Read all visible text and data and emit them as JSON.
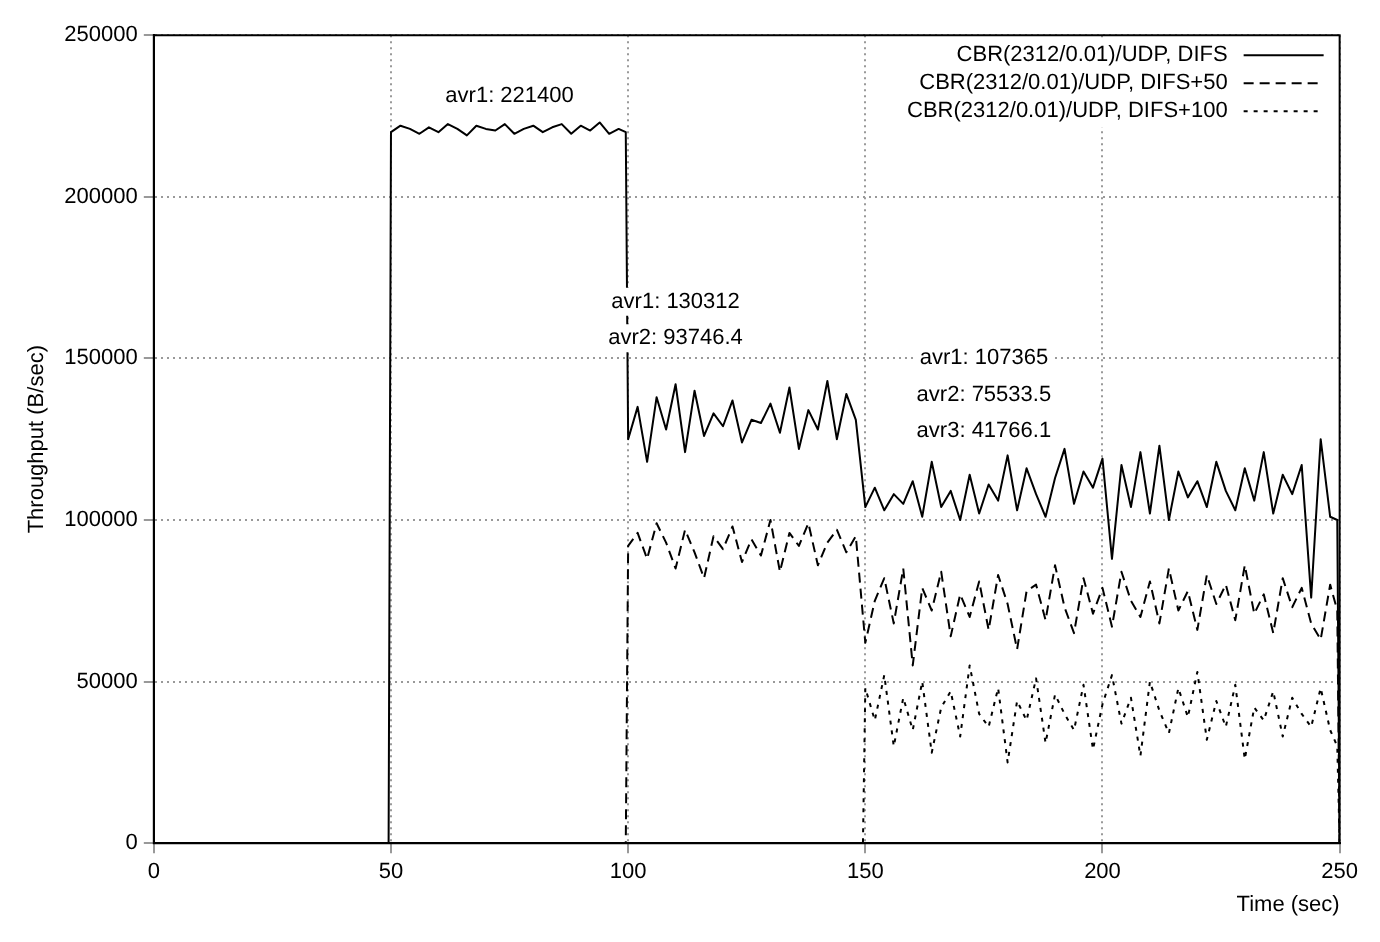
{
  "chart_data": {
    "type": "line",
    "xlabel": "Time (sec)",
    "ylabel": "Throughput (B/sec)",
    "xlim": [
      0,
      250
    ],
    "xticks": [
      0,
      50,
      100,
      150,
      200,
      250
    ],
    "ylim": [
      0,
      250000
    ],
    "yticks": [
      0,
      50000,
      100000,
      150000,
      200000,
      250000
    ],
    "grid": true,
    "legend": "top right",
    "marker": "none",
    "series": [
      {
        "name": "CBR(2312/0.01)/UDP, DIFS",
        "color": "#000000",
        "line_style": "solid",
        "x": [
          0,
          49.5,
          50,
          52,
          54,
          56,
          58,
          60,
          62,
          64,
          66,
          68,
          70,
          72,
          74,
          76,
          78,
          80,
          82,
          84,
          86,
          88,
          90,
          92,
          94,
          96,
          98,
          99.5,
          100,
          102,
          104,
          106,
          108,
          110,
          112,
          114,
          116,
          118,
          120,
          122,
          124,
          126,
          128,
          130,
          132,
          134,
          136,
          138,
          140,
          142,
          144,
          146,
          148,
          150,
          152,
          154,
          156,
          158,
          160,
          162,
          164,
          166,
          168,
          170,
          172,
          174,
          176,
          178,
          180,
          182,
          184,
          186,
          188,
          190,
          192,
          194,
          196,
          198,
          200,
          202,
          204,
          206,
          208,
          210,
          212,
          214,
          216,
          218,
          220,
          222,
          224,
          226,
          228,
          230,
          232,
          234,
          236,
          238,
          240,
          242,
          244,
          246,
          248,
          249.5,
          250
        ],
        "values": [
          0,
          0,
          220000,
          222000,
          221000,
          219500,
          221500,
          220000,
          222500,
          221000,
          219000,
          222000,
          221000,
          220500,
          222500,
          219500,
          221000,
          222000,
          220000,
          221500,
          222500,
          219500,
          222000,
          220500,
          223000,
          219500,
          221000,
          220000,
          125000,
          135000,
          118000,
          138000,
          128000,
          142000,
          121000,
          140000,
          126000,
          133000,
          129000,
          137000,
          124000,
          131000,
          130000,
          136000,
          127000,
          141000,
          122000,
          134000,
          128000,
          143000,
          125000,
          139000,
          131000,
          104000,
          110000,
          103000,
          108000,
          105000,
          112000,
          101000,
          118000,
          104000,
          109000,
          100000,
          114000,
          102000,
          111000,
          106000,
          120000,
          103000,
          116000,
          108000,
          101000,
          113000,
          122000,
          105000,
          115000,
          110000,
          119000,
          88000,
          117000,
          104000,
          121000,
          102000,
          123000,
          100000,
          115000,
          107000,
          112000,
          104000,
          118000,
          109000,
          103000,
          116000,
          106000,
          121000,
          102000,
          114000,
          108000,
          117000,
          76000,
          125000,
          101000,
          100000,
          0
        ]
      },
      {
        "name": "CBR(2312/0.01)/UDP, DIFS+50",
        "color": "#000000",
        "line_style": "dashed",
        "x": [
          0,
          99.5,
          100,
          102,
          104,
          106,
          108,
          110,
          112,
          114,
          116,
          118,
          120,
          122,
          124,
          126,
          128,
          130,
          132,
          134,
          136,
          138,
          140,
          142,
          144,
          146,
          148,
          150,
          152,
          154,
          156,
          158,
          160,
          162,
          164,
          166,
          168,
          170,
          172,
          174,
          176,
          178,
          180,
          182,
          184,
          186,
          188,
          190,
          192,
          194,
          196,
          198,
          200,
          202,
          204,
          206,
          208,
          210,
          212,
          214,
          216,
          218,
          220,
          222,
          224,
          226,
          228,
          230,
          232,
          234,
          236,
          238,
          240,
          242,
          244,
          246,
          248,
          249.5,
          250
        ],
        "values": [
          0,
          0,
          92000,
          96000,
          88000,
          99000,
          93000,
          85000,
          97000,
          90000,
          82000,
          95000,
          91000,
          98000,
          87000,
          94000,
          89000,
          100000,
          84000,
          96000,
          92000,
          99000,
          86000,
          93000,
          97000,
          90000,
          95000,
          62000,
          75000,
          82000,
          68000,
          85000,
          55000,
          79000,
          72000,
          84000,
          64000,
          77000,
          70000,
          81000,
          66000,
          83000,
          74000,
          60000,
          78000,
          80000,
          69000,
          86000,
          73000,
          65000,
          82000,
          71000,
          79000,
          67000,
          84000,
          75000,
          70000,
          81000,
          68000,
          85000,
          72000,
          78000,
          66000,
          83000,
          74000,
          80000,
          69000,
          86000,
          71000,
          77000,
          65000,
          82000,
          73000,
          79000,
          68000,
          63000,
          80000,
          72000,
          0
        ]
      },
      {
        "name": "CBR(2312/0.01)/UDP, DIFS+100",
        "color": "#000000",
        "line_style": "dotted",
        "x": [
          0,
          149.5,
          150,
          152,
          154,
          156,
          158,
          160,
          162,
          164,
          166,
          168,
          170,
          172,
          174,
          176,
          178,
          180,
          182,
          184,
          186,
          188,
          190,
          192,
          194,
          196,
          198,
          200,
          202,
          204,
          206,
          208,
          210,
          212,
          214,
          216,
          218,
          220,
          222,
          224,
          226,
          228,
          230,
          232,
          234,
          236,
          238,
          240,
          242,
          244,
          246,
          248,
          249.5,
          250
        ],
        "values": [
          0,
          0,
          48000,
          38000,
          52000,
          30000,
          45000,
          35000,
          50000,
          28000,
          42000,
          47000,
          33000,
          55000,
          40000,
          36000,
          48000,
          25000,
          44000,
          38000,
          51000,
          31000,
          46000,
          40000,
          35000,
          49000,
          29000,
          43000,
          52000,
          37000,
          45000,
          27000,
          50000,
          41000,
          34000,
          48000,
          39000,
          53000,
          32000,
          44000,
          36000,
          49000,
          26000,
          42000,
          38000,
          47000,
          33000,
          45000,
          40000,
          36000,
          48000,
          35000,
          30000,
          0
        ]
      }
    ],
    "annotations": [
      "avr1: 221400",
      "avr1: 130312",
      "avr2: 93746.4",
      "avr1: 107365",
      "avr2: 75533.5",
      "avr3: 41766.1"
    ]
  }
}
